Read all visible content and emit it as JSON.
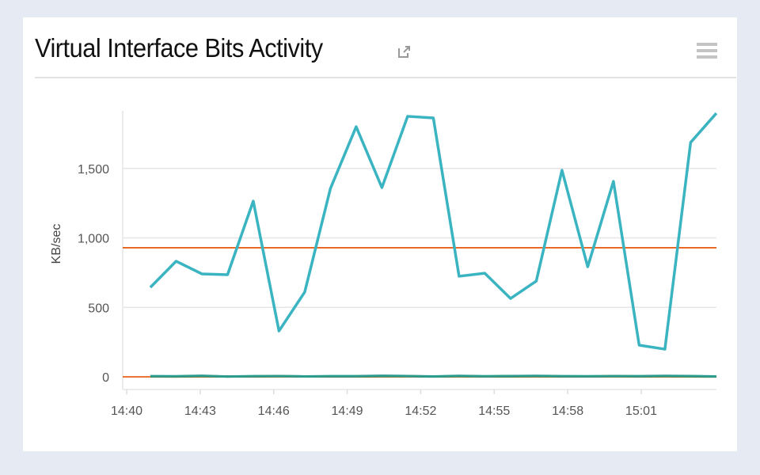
{
  "header": {
    "title": "Virtual Interface Bits Activity",
    "icons": [
      "external-link-icon",
      "hamburger-menu-icon"
    ]
  },
  "chart_data": {
    "type": "line",
    "ylabel": "KB/sec",
    "xlabel": "",
    "ylim": [
      0,
      1900
    ],
    "yticks": [
      0,
      500,
      1000,
      1500
    ],
    "ytick_labels": [
      "0",
      "500",
      "1,000",
      "1,500"
    ],
    "xlim": [
      "14:40",
      "15:04:10"
    ],
    "xtick_labels": [
      "14:40",
      "14:43",
      "14:46",
      "14:49",
      "14:52",
      "14:55",
      "14:58",
      "15:01"
    ],
    "grid": "horizontal",
    "x": [
      "14:40:58",
      "14:42:01",
      "14:43:04",
      "14:44:07",
      "14:45:10",
      "14:46:13",
      "14:47:16",
      "14:48:19",
      "14:49:22",
      "14:50:25",
      "14:51:28",
      "14:52:31",
      "14:53:34",
      "14:54:37",
      "14:55:40",
      "14:56:43",
      "14:57:46",
      "14:58:49",
      "14:59:52",
      "15:00:55",
      "15:01:58",
      "15:03:01",
      "15:04:04"
    ],
    "series": [
      {
        "color": "#3bb4c1",
        "values": [
          644,
          832,
          741,
          735,
          1265,
          330,
          610,
          1356,
          1800,
          1362,
          1875,
          1863,
          724,
          746,
          564,
          689,
          1487,
          792,
          1407,
          228,
          199,
          1687,
          1897
        ]
      },
      {
        "color": "#2a9d8f",
        "values": [
          5,
          4,
          8,
          2,
          5,
          6,
          3,
          5,
          5,
          8,
          6,
          3,
          7,
          4,
          6,
          7,
          5,
          4,
          6,
          5,
          7,
          6,
          3
        ]
      },
      {
        "color": "#8a6d1f",
        "values": [
          3,
          2,
          4,
          2,
          3,
          4,
          3,
          3,
          3,
          4,
          4,
          2,
          4,
          3,
          3,
          4,
          3,
          3,
          4,
          3,
          4,
          3,
          2
        ]
      }
    ],
    "reference_lines": [
      {
        "color": "#e8611a",
        "value": 929
      },
      {
        "color": "#e8611a",
        "value": 0
      }
    ]
  }
}
